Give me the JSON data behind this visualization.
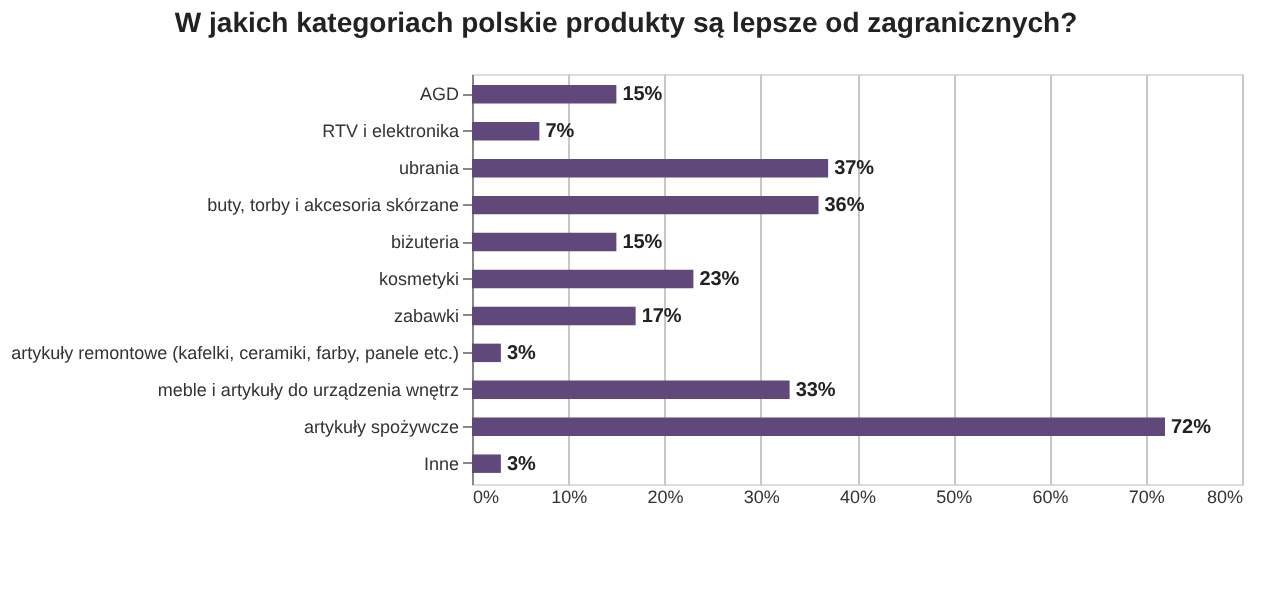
{
  "chart_data": {
    "type": "bar",
    "orientation": "horizontal",
    "title": "W jakich kategoriach polskie produkty są lepsze od zagranicznych?",
    "categories": [
      "AGD",
      "RTV i elektronika",
      "ubrania",
      "buty, torby i akcesoria skórzane",
      "biżuteria",
      "kosmetyki",
      "zabawki",
      "artykuły remontowe (kafelki, ceramiki, farby, panele etc.)",
      "meble i artykuły do urządzenia wnętrz",
      "artykuły spożywcze",
      "Inne"
    ],
    "values": [
      15,
      7,
      37,
      36,
      15,
      23,
      17,
      3,
      33,
      72,
      3
    ],
    "value_labels": [
      "15%",
      "7%",
      "37%",
      "36%",
      "15%",
      "23%",
      "17%",
      "3%",
      "33%",
      "72%",
      "3%"
    ],
    "color": "#60497a",
    "xlim": [
      0,
      80
    ],
    "xticks": [
      {
        "value": 0,
        "label": "0%"
      },
      {
        "value": 10,
        "label": "10%"
      },
      {
        "value": 20,
        "label": "20%"
      },
      {
        "value": 30,
        "label": "30%"
      },
      {
        "value": 40,
        "label": "40%"
      },
      {
        "value": 50,
        "label": "50%"
      },
      {
        "value": 60,
        "label": "60%"
      },
      {
        "value": 70,
        "label": "70%"
      },
      {
        "value": 80,
        "label": "80%"
      }
    ],
    "grid": "x"
  }
}
